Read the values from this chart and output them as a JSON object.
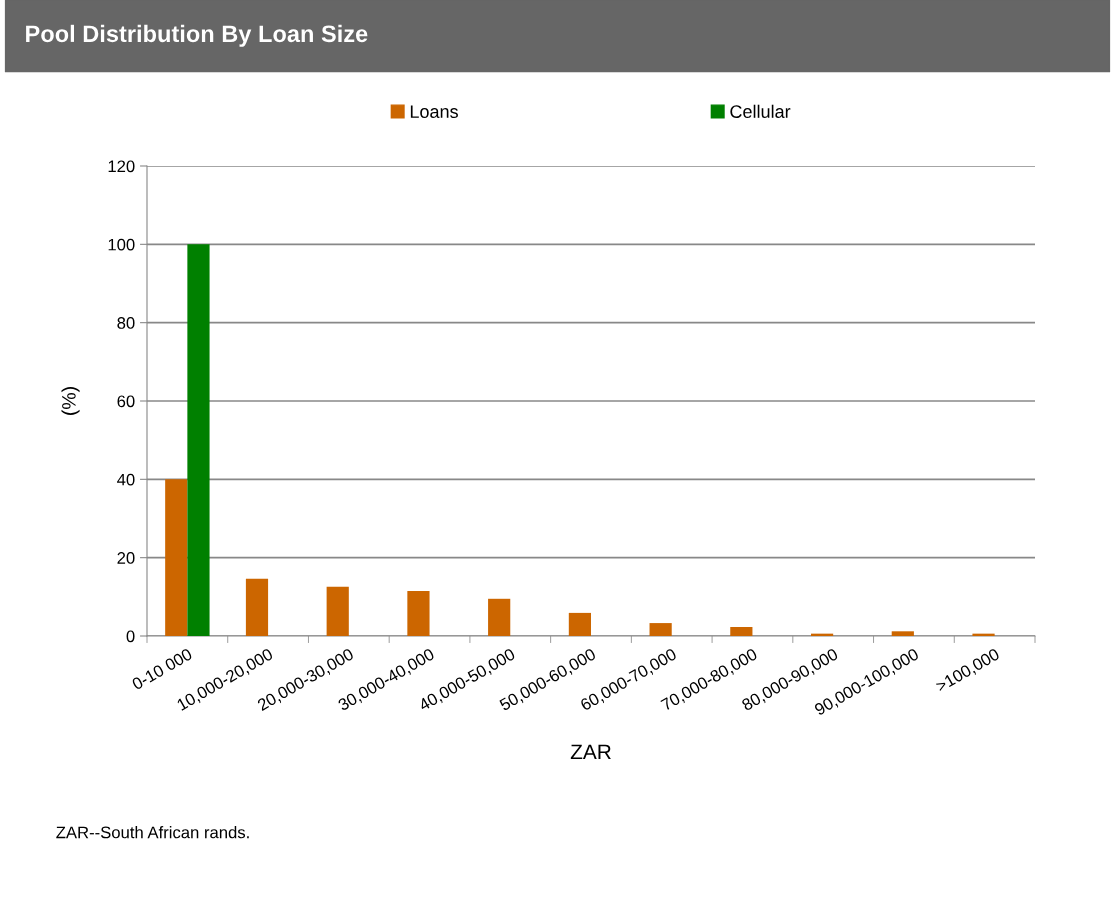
{
  "chart_data": {
    "type": "bar",
    "title": "Pool Distribution By Loan Size",
    "xlabel": "ZAR",
    "ylabel": "(%)",
    "categories": [
      "0-10 000",
      "10,000-20,000",
      "20,000-30,000",
      "30,000-40,000",
      "40,000-50,000",
      "50,000-60,000",
      "60,000-70,000",
      "70,000-80,000",
      "80,000-90,000",
      "90,000-100,000",
      ">100,000"
    ],
    "series": [
      {
        "name": "Loans",
        "color": "#cc6600",
        "values": [
          40,
          14.6,
          12.6,
          11.5,
          9.5,
          5.9,
          3.3,
          2.3,
          0.6,
          1.2,
          0.6
        ]
      },
      {
        "name": "Cellular",
        "color": "#008000",
        "values": [
          100,
          null,
          null,
          null,
          null,
          null,
          null,
          null,
          null,
          null,
          null
        ]
      }
    ],
    "ylim": [
      0,
      120
    ],
    "yticks": [
      0,
      20,
      40,
      60,
      80,
      100,
      120
    ],
    "grid": "y",
    "legend": "top",
    "annotations": [
      "ZAR--South African rands."
    ]
  }
}
